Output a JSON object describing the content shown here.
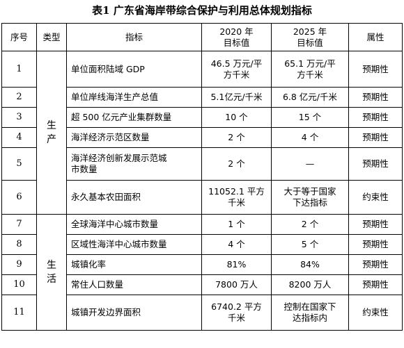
{
  "title": "表1  广东省海岸带综合保护与利用总体规划指标",
  "headers": {
    "seq": "序号",
    "type": "类型",
    "indicator": "指标",
    "target2020": "2020 年\n目标值",
    "target2025": "2025 年\n目标值",
    "attribute": "属性"
  },
  "categories": {
    "production": "生\n产",
    "living": "生\n活"
  },
  "rows": [
    {
      "no": "1",
      "indicator": "单位面积陆域 GDP",
      "v2020": "46.5 万元/平\n方千米",
      "v2025": "65.1 万元/平\n方千米",
      "attr": "预期性"
    },
    {
      "no": "2",
      "indicator": "单位岸线海洋生产总值",
      "v2020": "5.1亿元/千米",
      "v2025": "6.8 亿元/千米",
      "attr": "预期性"
    },
    {
      "no": "3",
      "indicator": "超 500 亿元产业集群数量",
      "v2020": "10 个",
      "v2025": "15 个",
      "attr": "预期性"
    },
    {
      "no": "4",
      "indicator": "海洋经济示范区数量",
      "v2020": "2 个",
      "v2025": "4 个",
      "attr": "预期性"
    },
    {
      "no": "5",
      "indicator": "海洋经济创新发展示范城\n市数量",
      "v2020": "2 个",
      "v2025": "—",
      "attr": "预期性"
    },
    {
      "no": "6",
      "indicator": "永久基本农田面积",
      "v2020": "11052.1 平方\n千米",
      "v2025": "大于等于国家\n下达指标",
      "attr": "约束性"
    },
    {
      "no": "7",
      "indicator": "全球海洋中心城市数量",
      "v2020": "1 个",
      "v2025": "2 个",
      "attr": "预期性"
    },
    {
      "no": "8",
      "indicator": "区域性海洋中心城市数量",
      "v2020": "4 个",
      "v2025": "5 个",
      "attr": "预期性"
    },
    {
      "no": "9",
      "indicator": "城镇化率",
      "v2020": "81%",
      "v2025": "84%",
      "attr": "预期性"
    },
    {
      "no": "10",
      "indicator": "常住人口数量",
      "v2020": "7800 万人",
      "v2025": "8200 万人",
      "attr": "预期性"
    },
    {
      "no": "11",
      "indicator": "城镇开发边界面积",
      "v2020": "6740.2 平方\n千米",
      "v2025": "控制在国家下\n达指标内",
      "attr": "约束性"
    }
  ]
}
